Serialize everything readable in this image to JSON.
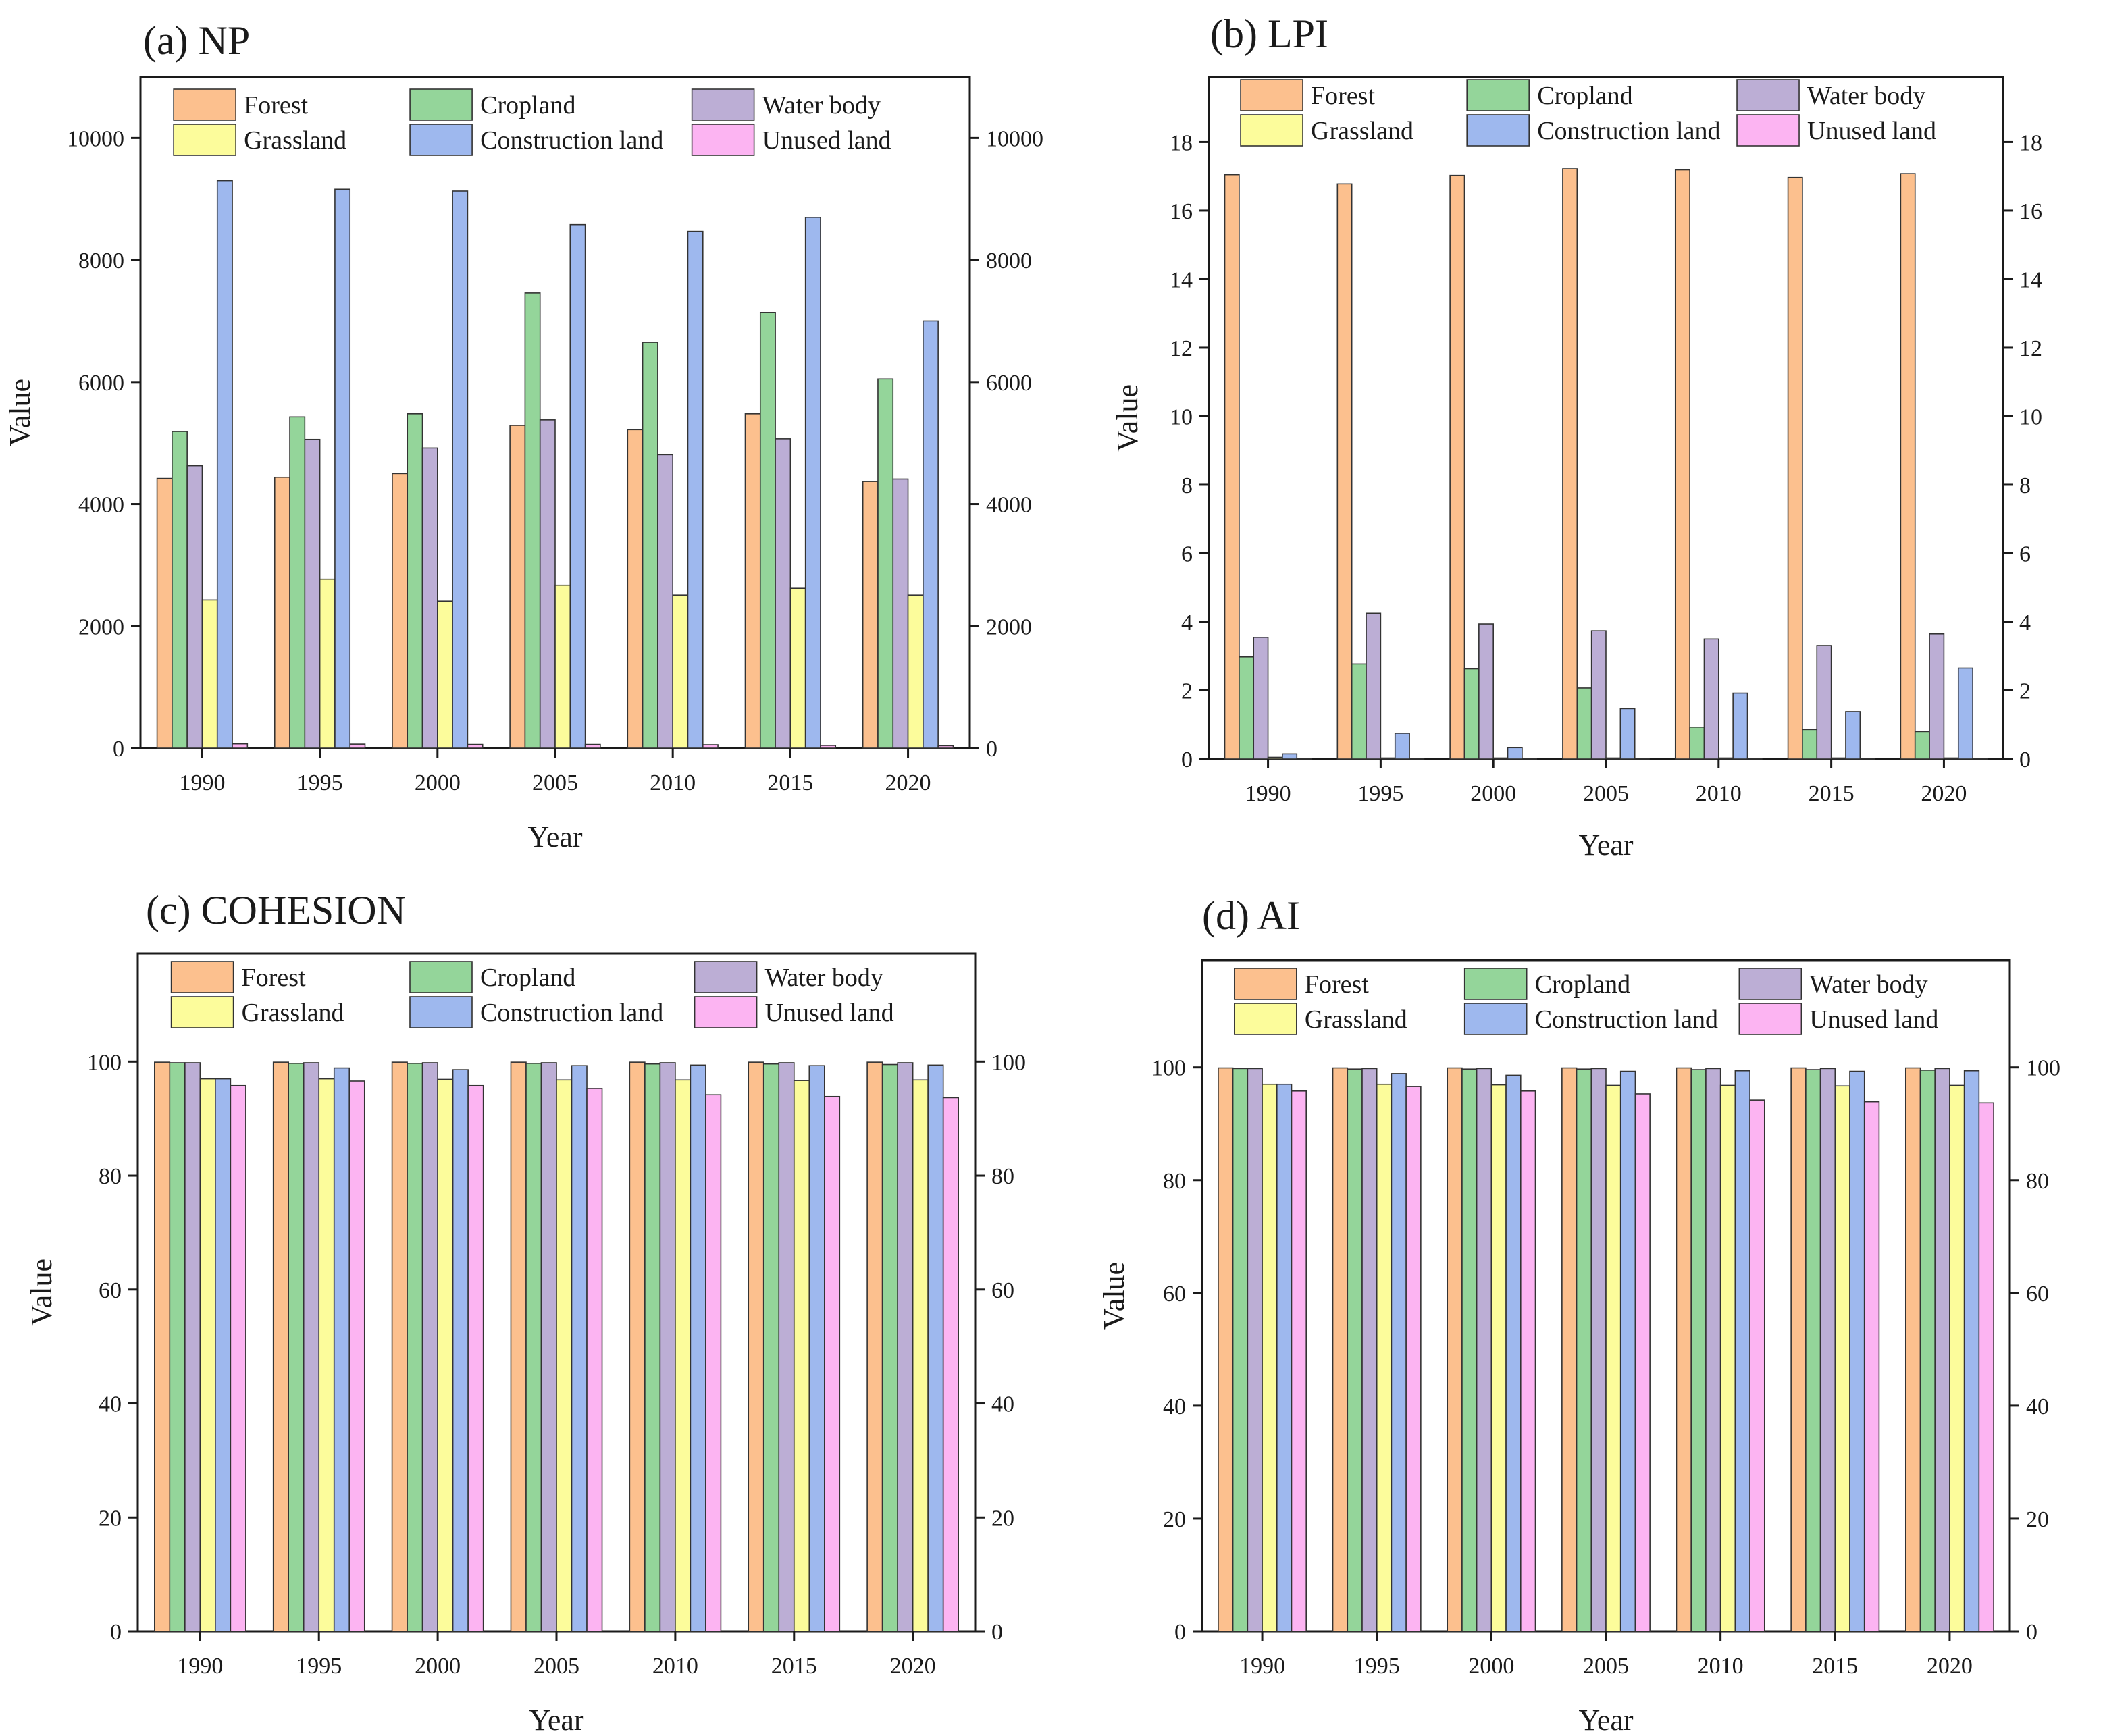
{
  "figure": {
    "series_styles": [
      {
        "name": "Forest",
        "color": "#FCC08E"
      },
      {
        "name": "Cropland",
        "color": "#94D59A"
      },
      {
        "name": "Water body",
        "color": "#BCAED5"
      },
      {
        "name": "Grassland",
        "color": "#FCFC9B"
      },
      {
        "name": "Construction land",
        "color": "#9EB8EE"
      },
      {
        "name": "Unused land",
        "color": "#FCB4F2"
      }
    ]
  },
  "chart_data": [
    {
      "type": "bar",
      "title": "(a)  NP",
      "xlabel": "Year",
      "ylabel": "Value",
      "categories": [
        "1990",
        "1995",
        "2000",
        "2005",
        "2010",
        "2015",
        "2020"
      ],
      "ylim": [
        0,
        11000
      ],
      "yticks": [
        0,
        2000,
        4000,
        6000,
        8000,
        10000
      ],
      "yticklabels": [
        "0",
        "2000",
        "4000",
        "6000",
        "8000",
        "10000"
      ],
      "grid": false,
      "legend_position": "top",
      "series": [
        {
          "name": "Forest",
          "values": [
            4420,
            4440,
            4500,
            5290,
            5220,
            5480,
            4370
          ]
        },
        {
          "name": "Cropland",
          "values": [
            5190,
            5430,
            5480,
            7460,
            6650,
            7140,
            6050
          ]
        },
        {
          "name": "Water body",
          "values": [
            4630,
            5060,
            4920,
            5380,
            4810,
            5070,
            4410
          ]
        },
        {
          "name": "Grassland",
          "values": [
            2430,
            2770,
            2410,
            2670,
            2510,
            2620,
            2510
          ]
        },
        {
          "name": "Construction land",
          "values": [
            9300,
            9160,
            9130,
            8580,
            8470,
            8700,
            7000
          ]
        },
        {
          "name": "Unused land",
          "values": [
            70,
            65,
            60,
            60,
            55,
            45,
            40
          ]
        }
      ]
    },
    {
      "type": "bar",
      "title": "(b)  LPI",
      "xlabel": "Year",
      "ylabel": "Value",
      "categories": [
        "1990",
        "1995",
        "2000",
        "2005",
        "2010",
        "2015",
        "2020"
      ],
      "ylim": [
        0,
        19.9
      ],
      "yticks": [
        0,
        2,
        4,
        6,
        8,
        10,
        12,
        14,
        16,
        18
      ],
      "yticklabels": [
        "0",
        "2",
        "4",
        "6",
        "8",
        "10",
        "12",
        "14",
        "16",
        "18"
      ],
      "grid": false,
      "legend_position": "top",
      "series": [
        {
          "name": "Forest",
          "values": [
            17.05,
            16.78,
            17.03,
            17.22,
            17.19,
            16.97,
            17.08
          ]
        },
        {
          "name": "Cropland",
          "values": [
            2.98,
            2.77,
            2.63,
            2.07,
            0.93,
            0.86,
            0.8
          ]
        },
        {
          "name": "Water body",
          "values": [
            3.55,
            4.25,
            3.94,
            3.74,
            3.5,
            3.31,
            3.65
          ]
        },
        {
          "name": "Grassland",
          "values": [
            0.05,
            0.03,
            0.03,
            0.03,
            0.03,
            0.03,
            0.03
          ]
        },
        {
          "name": "Construction land",
          "values": [
            0.15,
            0.75,
            0.33,
            1.47,
            1.92,
            1.38,
            2.65
          ]
        },
        {
          "name": "Unused land",
          "values": [
            0.01,
            0.01,
            0.01,
            0.01,
            0.01,
            0.01,
            0.01
          ]
        }
      ]
    },
    {
      "type": "bar",
      "title": "(c)  COHESION",
      "xlabel": "Year",
      "ylabel": "Value",
      "categories": [
        "1990",
        "1995",
        "2000",
        "2005",
        "2010",
        "2015",
        "2020"
      ],
      "ylim": [
        0,
        119
      ],
      "yticks": [
        0,
        20,
        40,
        60,
        80,
        100
      ],
      "yticklabels": [
        "0",
        "20",
        "40",
        "60",
        "80",
        "100"
      ],
      "grid": false,
      "legend_position": "top",
      "series": [
        {
          "name": "Forest",
          "values": [
            99.9,
            99.9,
            99.9,
            99.9,
            99.9,
            99.9,
            99.9
          ]
        },
        {
          "name": "Cropland",
          "values": [
            99.8,
            99.7,
            99.7,
            99.7,
            99.6,
            99.6,
            99.5
          ]
        },
        {
          "name": "Water body",
          "values": [
            99.8,
            99.8,
            99.8,
            99.8,
            99.8,
            99.8,
            99.8
          ]
        },
        {
          "name": "Grassland",
          "values": [
            97.0,
            97.0,
            96.9,
            96.8,
            96.8,
            96.7,
            96.8
          ]
        },
        {
          "name": "Construction land",
          "values": [
            97.0,
            98.9,
            98.6,
            99.3,
            99.4,
            99.3,
            99.4
          ]
        },
        {
          "name": "Unused land",
          "values": [
            95.8,
            96.6,
            95.8,
            95.3,
            94.2,
            93.9,
            93.7
          ]
        }
      ]
    },
    {
      "type": "bar",
      "title": "(d)  AI",
      "xlabel": "Year",
      "ylabel": "Value",
      "categories": [
        "1990",
        "1995",
        "2000",
        "2005",
        "2010",
        "2015",
        "2020"
      ],
      "ylim": [
        0,
        119
      ],
      "yticks": [
        0,
        20,
        40,
        60,
        80,
        100
      ],
      "yticklabels": [
        "0",
        "20",
        "40",
        "60",
        "80",
        "100"
      ],
      "grid": false,
      "legend_position": "top",
      "series": [
        {
          "name": "Forest",
          "values": [
            99.9,
            99.9,
            99.9,
            99.9,
            99.9,
            99.9,
            99.9
          ]
        },
        {
          "name": "Cropland",
          "values": [
            99.8,
            99.7,
            99.7,
            99.7,
            99.6,
            99.6,
            99.5
          ]
        },
        {
          "name": "Water body",
          "values": [
            99.8,
            99.8,
            99.8,
            99.8,
            99.8,
            99.8,
            99.8
          ]
        },
        {
          "name": "Grassland",
          "values": [
            97.0,
            97.0,
            96.9,
            96.8,
            96.8,
            96.7,
            96.8
          ]
        },
        {
          "name": "Construction land",
          "values": [
            97.0,
            98.9,
            98.6,
            99.3,
            99.4,
            99.3,
            99.4
          ]
        },
        {
          "name": "Unused land",
          "values": [
            95.8,
            96.6,
            95.8,
            95.3,
            94.2,
            93.9,
            93.7
          ]
        }
      ]
    }
  ]
}
